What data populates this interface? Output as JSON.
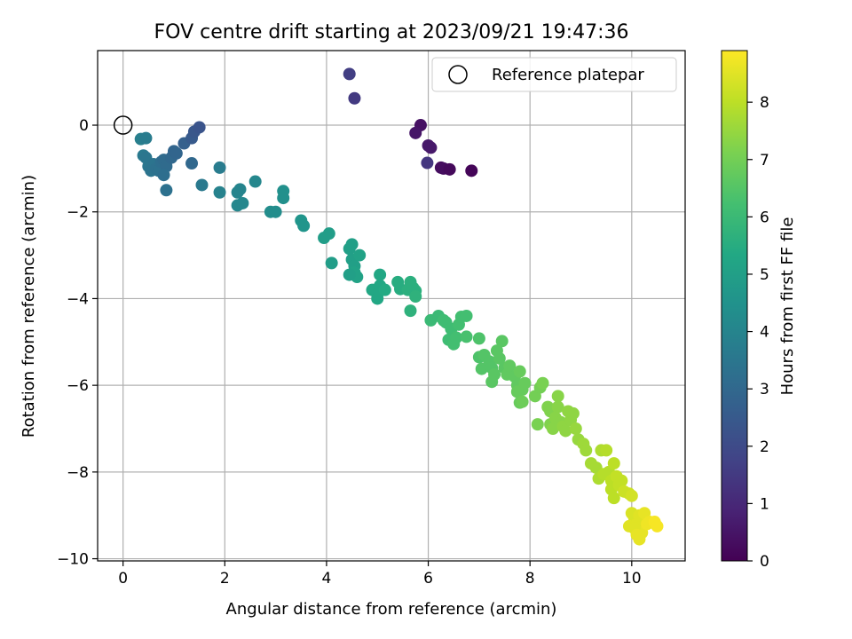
{
  "chart_data": {
    "type": "scatter",
    "title": "FOV centre drift starting at 2023/09/21 19:47:36",
    "xlabel": "Angular distance from reference (arcmin)",
    "ylabel": "Rotation from reference (arcmin)",
    "xlim": [
      -0.5,
      11.05
    ],
    "ylim": [
      -10.05,
      1.72
    ],
    "xticks": [
      0,
      2,
      4,
      6,
      8,
      10
    ],
    "xtick_labels": [
      "0",
      "2",
      "4",
      "6",
      "8",
      "10"
    ],
    "yticks": [
      0,
      -2,
      -4,
      -6,
      -8,
      -10
    ],
    "ytick_labels": [
      "0",
      "−2",
      "−4",
      "−6",
      "−8",
      "−10"
    ],
    "grid": true,
    "legend": {
      "placement": "top-right",
      "entries": [
        "Reference platepar"
      ]
    },
    "reference_point": {
      "x": 0,
      "y": 0,
      "marker": "open-circle"
    },
    "colorbar": {
      "label": "Hours from first FF file",
      "colormap": "viridis",
      "range": [
        0,
        8.9
      ],
      "ticks": [
        0,
        1,
        2,
        3,
        4,
        5,
        6,
        7,
        8
      ],
      "tick_labels": [
        "0",
        "1",
        "2",
        "3",
        "4",
        "5",
        "6",
        "7",
        "8"
      ]
    },
    "points": [
      [
        4.45,
        1.18,
        1.6
      ],
      [
        4.55,
        0.62,
        1.5
      ],
      [
        5.85,
        0.0,
        0.4
      ],
      [
        5.75,
        -0.18,
        0.5
      ],
      [
        6.0,
        -0.47,
        0.6
      ],
      [
        6.05,
        -0.52,
        0.6
      ],
      [
        5.98,
        -0.87,
        1.4
      ],
      [
        6.25,
        -0.98,
        0.3
      ],
      [
        6.3,
        -1.0,
        0.3
      ],
      [
        6.42,
        -1.02,
        0.2
      ],
      [
        6.85,
        -1.05,
        0.1
      ],
      [
        0.35,
        -0.32,
        3.8
      ],
      [
        0.45,
        -0.3,
        3.7
      ],
      [
        0.4,
        -0.7,
        3.6
      ],
      [
        0.45,
        -0.75,
        3.5
      ],
      [
        0.5,
        -0.95,
        3.5
      ],
      [
        0.55,
        -1.05,
        3.4
      ],
      [
        0.6,
        -0.9,
        3.4
      ],
      [
        0.65,
        -1.0,
        3.3
      ],
      [
        0.7,
        -1.05,
        3.3
      ],
      [
        0.75,
        -0.85,
        3.2
      ],
      [
        0.8,
        -0.8,
        3.1
      ],
      [
        0.85,
        -0.95,
        3.1
      ],
      [
        0.8,
        -1.15,
        3.2
      ],
      [
        0.85,
        -1.5,
        3.3
      ],
      [
        0.95,
        -0.75,
        3.0
      ],
      [
        1.0,
        -0.6,
        2.9
      ],
      [
        1.05,
        -0.65,
        2.9
      ],
      [
        1.2,
        -0.42,
        2.7
      ],
      [
        1.35,
        -0.3,
        2.5
      ],
      [
        1.4,
        -0.15,
        2.4
      ],
      [
        1.5,
        -0.05,
        2.3
      ],
      [
        1.35,
        -0.88,
        3.0
      ],
      [
        1.55,
        -1.38,
        3.6
      ],
      [
        1.9,
        -0.98,
        3.7
      ],
      [
        1.9,
        -1.55,
        3.9
      ],
      [
        2.25,
        -1.55,
        4.0
      ],
      [
        2.3,
        -1.48,
        4.0
      ],
      [
        2.25,
        -1.85,
        4.1
      ],
      [
        2.35,
        -1.8,
        4.1
      ],
      [
        2.6,
        -1.3,
        4.1
      ],
      [
        2.9,
        -2.0,
        4.3
      ],
      [
        3.0,
        -2.0,
        4.3
      ],
      [
        3.15,
        -1.52,
        4.4
      ],
      [
        3.15,
        -1.68,
        4.4
      ],
      [
        3.5,
        -2.2,
        4.6
      ],
      [
        3.55,
        -2.32,
        4.6
      ],
      [
        3.95,
        -2.6,
        4.9
      ],
      [
        4.05,
        -2.5,
        4.9
      ],
      [
        4.1,
        -3.18,
        4.9
      ],
      [
        4.45,
        -2.85,
        5.0
      ],
      [
        4.5,
        -2.75,
        5.0
      ],
      [
        4.5,
        -3.1,
        5.0
      ],
      [
        4.55,
        -3.25,
        5.0
      ],
      [
        4.65,
        -3.0,
        5.1
      ],
      [
        4.55,
        -3.4,
        5.1
      ],
      [
        4.6,
        -3.5,
        5.1
      ],
      [
        4.45,
        -3.45,
        5.0
      ],
      [
        4.9,
        -3.8,
        5.3
      ],
      [
        5.0,
        -3.9,
        5.3
      ],
      [
        5.0,
        -4.0,
        5.3
      ],
      [
        5.05,
        -3.7,
        5.3
      ],
      [
        5.05,
        -3.45,
        5.3
      ],
      [
        5.15,
        -3.8,
        5.4
      ],
      [
        5.4,
        -3.62,
        5.5
      ],
      [
        5.45,
        -3.78,
        5.5
      ],
      [
        5.6,
        -3.8,
        5.6
      ],
      [
        5.65,
        -3.62,
        5.6
      ],
      [
        5.7,
        -3.75,
        5.6
      ],
      [
        5.75,
        -3.82,
        5.6
      ],
      [
        5.65,
        -4.28,
        5.7
      ],
      [
        5.75,
        -3.95,
        5.7
      ],
      [
        6.05,
        -4.5,
        6.0
      ],
      [
        6.2,
        -4.4,
        6.0
      ],
      [
        6.3,
        -4.5,
        6.1
      ],
      [
        6.35,
        -4.55,
        6.1
      ],
      [
        6.45,
        -4.7,
        6.1
      ],
      [
        6.4,
        -4.95,
        6.1
      ],
      [
        6.5,
        -5.05,
        6.2
      ],
      [
        6.55,
        -4.9,
        6.2
      ],
      [
        6.6,
        -4.6,
        6.2
      ],
      [
        6.65,
        -4.42,
        6.2
      ],
      [
        6.75,
        -4.4,
        6.2
      ],
      [
        6.75,
        -4.88,
        6.3
      ],
      [
        7.0,
        -4.92,
        6.4
      ],
      [
        7.0,
        -5.35,
        6.4
      ],
      [
        7.05,
        -5.62,
        6.5
      ],
      [
        7.1,
        -5.3,
        6.5
      ],
      [
        7.2,
        -5.45,
        6.5
      ],
      [
        7.25,
        -5.6,
        6.5
      ],
      [
        7.3,
        -5.75,
        6.6
      ],
      [
        7.25,
        -5.92,
        6.6
      ],
      [
        7.35,
        -5.2,
        6.6
      ],
      [
        7.4,
        -5.38,
        6.6
      ],
      [
        7.45,
        -4.98,
        6.6
      ],
      [
        7.5,
        -5.6,
        6.6
      ],
      [
        7.55,
        -5.75,
        6.7
      ],
      [
        7.6,
        -5.55,
        6.7
      ],
      [
        7.7,
        -5.8,
        6.7
      ],
      [
        7.75,
        -6.0,
        6.7
      ],
      [
        7.8,
        -6.4,
        6.8
      ],
      [
        7.85,
        -6.1,
        6.8
      ],
      [
        7.75,
        -6.15,
        6.8
      ],
      [
        7.9,
        -5.95,
        6.8
      ],
      [
        7.8,
        -5.68,
        6.8
      ],
      [
        7.85,
        -6.38,
        6.9
      ],
      [
        8.1,
        -6.25,
        7.0
      ],
      [
        8.2,
        -6.05,
        7.0
      ],
      [
        8.25,
        -5.95,
        7.1
      ],
      [
        8.15,
        -6.9,
        7.1
      ],
      [
        8.35,
        -6.5,
        7.2
      ],
      [
        8.4,
        -6.6,
        7.2
      ],
      [
        8.4,
        -6.9,
        7.2
      ],
      [
        8.45,
        -7.0,
        7.3
      ],
      [
        8.5,
        -6.75,
        7.3
      ],
      [
        8.55,
        -6.5,
        7.3
      ],
      [
        8.55,
        -6.25,
        7.3
      ],
      [
        8.6,
        -6.85,
        7.3
      ],
      [
        8.65,
        -6.95,
        7.4
      ],
      [
        8.7,
        -7.05,
        7.4
      ],
      [
        8.75,
        -6.6,
        7.4
      ],
      [
        8.8,
        -6.8,
        7.4
      ],
      [
        8.85,
        -6.65,
        7.4
      ],
      [
        8.95,
        -7.25,
        7.5
      ],
      [
        8.9,
        -7.0,
        7.5
      ],
      [
        9.05,
        -7.35,
        7.6
      ],
      [
        9.1,
        -7.5,
        7.6
      ],
      [
        9.2,
        -7.8,
        7.7
      ],
      [
        9.3,
        -7.9,
        7.7
      ],
      [
        9.35,
        -8.15,
        7.8
      ],
      [
        9.4,
        -7.5,
        7.8
      ],
      [
        9.45,
        -8.05,
        7.9
      ],
      [
        9.5,
        -7.5,
        7.9
      ],
      [
        9.55,
        -8.0,
        7.9
      ],
      [
        9.6,
        -8.2,
        8.0
      ],
      [
        9.6,
        -8.4,
        8.0
      ],
      [
        9.65,
        -8.6,
        8.0
      ],
      [
        9.65,
        -7.8,
        8.0
      ],
      [
        9.7,
        -8.1,
        8.1
      ],
      [
        9.75,
        -8.3,
        8.1
      ],
      [
        9.8,
        -8.2,
        8.1
      ],
      [
        9.85,
        -8.45,
        8.2
      ],
      [
        9.95,
        -8.5,
        8.2
      ],
      [
        10.0,
        -8.55,
        8.3
      ],
      [
        10.0,
        -8.95,
        8.4
      ],
      [
        10.05,
        -9.05,
        8.4
      ],
      [
        9.95,
        -9.25,
        8.5
      ],
      [
        10.1,
        -9.2,
        8.5
      ],
      [
        10.15,
        -9.0,
        8.5
      ],
      [
        10.2,
        -9.4,
        8.6
      ],
      [
        10.15,
        -9.55,
        8.6
      ],
      [
        10.25,
        -8.95,
        8.6
      ],
      [
        10.3,
        -9.2,
        8.7
      ],
      [
        10.35,
        -9.15,
        8.7
      ],
      [
        10.45,
        -9.15,
        8.8
      ],
      [
        10.5,
        -9.25,
        8.8
      ],
      [
        10.05,
        -9.3,
        8.5
      ],
      [
        10.1,
        -9.45,
        8.6
      ]
    ]
  }
}
